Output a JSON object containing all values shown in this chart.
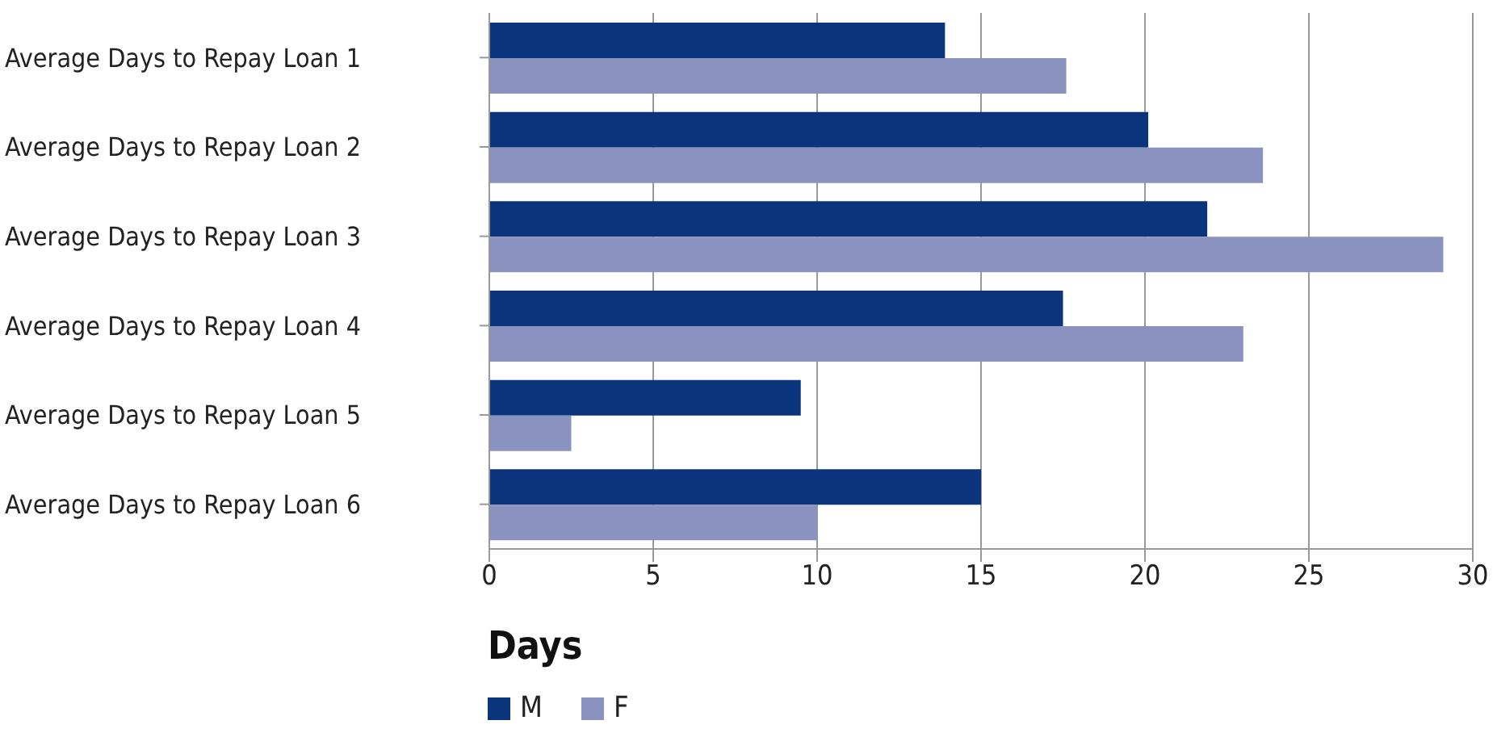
{
  "chart_data": {
    "type": "bar",
    "orientation": "horizontal",
    "xlabel": "Days",
    "categories": [
      "Average Days to Repay Loan 1",
      "Average Days to Repay Loan 2",
      "Average Days to Repay Loan 3",
      "Average Days to Repay Loan 4",
      "Average Days to Repay Loan 5",
      "Average Days to Repay Loan 6"
    ],
    "series": [
      {
        "name": "M",
        "color": "#0a347c",
        "values": [
          13.9,
          20.1,
          21.9,
          17.5,
          9.5,
          15
        ]
      },
      {
        "name": "F",
        "color": "#8a93bf",
        "values": [
          17.6,
          23.6,
          29.1,
          23.0,
          2.5,
          10
        ]
      }
    ],
    "xlim": [
      0,
      30
    ],
    "xticks": [
      0,
      5,
      10,
      15,
      20,
      25,
      30
    ],
    "grid": "x",
    "legend": "bottom"
  }
}
